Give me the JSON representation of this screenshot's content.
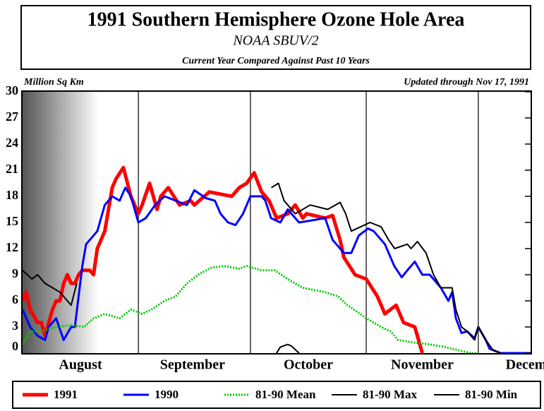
{
  "chart_data": {
    "type": "line",
    "title": "1991 Southern Hemisphere Ozone Hole Area",
    "subtitle": "NOAA SBUV/2",
    "caption": "Current Year Compared Against Past 10 Years",
    "ylabel": "Million Sq Km",
    "annotation": "Updated through Nov 17, 1991",
    "xlim": [
      0,
      136
    ],
    "xticks": [
      {
        "value": 15.5,
        "label": "August"
      },
      {
        "value": 45.5,
        "label": "September"
      },
      {
        "value": 76.5,
        "label": "October"
      },
      {
        "value": 107,
        "label": "November"
      },
      {
        "value": 137.5,
        "label": "December"
      }
    ],
    "xgrid": [
      31,
      61,
      92,
      122
    ],
    "ylim": [
      0,
      30
    ],
    "yticks": [
      0,
      3,
      6,
      9,
      12,
      15,
      18,
      21,
      24,
      27,
      30
    ],
    "series": [
      {
        "name": "1991",
        "color": "#ff0000",
        "style": "solid",
        "x": [
          0,
          1,
          2,
          4,
          5,
          6,
          8,
          9,
          10,
          11,
          12,
          13,
          14,
          15,
          16,
          18,
          19,
          20,
          22,
          24,
          25,
          27,
          29,
          31,
          32,
          34,
          36,
          37,
          39,
          42,
          45,
          46,
          50,
          56,
          58,
          60,
          62,
          64,
          66,
          68,
          71,
          73,
          75,
          76,
          81,
          83,
          85,
          86,
          89,
          92,
          95,
          97,
          100,
          102,
          105,
          107
        ],
        "values": [
          6,
          7,
          5,
          3.5,
          3.5,
          2,
          5,
          6,
          6,
          8,
          9,
          8,
          8,
          9,
          9.5,
          9.5,
          9,
          12,
          14,
          19,
          20,
          21.3,
          18,
          16,
          17,
          19.5,
          16.5,
          18,
          19,
          17,
          17.5,
          17,
          18.5,
          18,
          19,
          19.5,
          20.7,
          18.5,
          17.5,
          15.5,
          16,
          17,
          15.5,
          16,
          15.5,
          15.8,
          13,
          11,
          9,
          8.5,
          6.5,
          4.5,
          5.5,
          3.5,
          3,
          0
        ]
      },
      {
        "name": "1990",
        "color": "#0000ff",
        "style": "solid",
        "x": [
          0,
          2,
          4,
          6,
          7,
          9,
          11,
          13,
          14,
          16,
          17,
          18,
          20,
          22,
          24,
          26,
          27.5,
          29,
          31,
          33,
          35.5,
          38,
          44,
          46,
          49,
          51.5,
          53,
          55,
          57,
          59,
          61,
          64,
          65,
          66.5,
          69,
          71,
          74,
          77,
          81,
          83,
          86,
          88,
          90,
          92.5,
          94,
          97,
          99.5,
          101.5,
          103,
          105,
          107,
          109,
          112,
          114,
          115,
          116,
          117.5,
          119,
          121,
          122,
          124,
          125,
          128,
          136
        ],
        "values": [
          5,
          3,
          2,
          1.5,
          3,
          4,
          1.5,
          3,
          3,
          10,
          12.5,
          13,
          14,
          17,
          18,
          17.5,
          19,
          18,
          15,
          15.5,
          17,
          18,
          17,
          18.7,
          17.8,
          17.5,
          16,
          15,
          14.7,
          16,
          18,
          18,
          17.5,
          15.5,
          15,
          16.5,
          15,
          15.2,
          15.5,
          13,
          11.5,
          11.5,
          13.5,
          14.3,
          14,
          12.5,
          10,
          8.7,
          9.5,
          10.5,
          9,
          9,
          7.5,
          6,
          7,
          4,
          2.3,
          2.5,
          1.7,
          3,
          1.5,
          0.5,
          0,
          0
        ]
      },
      {
        "name": "81-90 Mean",
        "color": "#00cc00",
        "style": "dotted",
        "x": [
          0,
          2,
          5,
          9,
          13,
          16.5,
          19,
          22,
          26,
          29,
          32,
          34.5,
          38,
          41,
          44,
          47,
          50.5,
          54,
          58,
          60,
          64,
          67.5,
          71,
          75,
          81,
          84.5,
          87,
          92,
          96,
          98.5,
          100.5,
          105,
          109,
          113,
          117,
          120,
          122
        ],
        "values": [
          1,
          2.5,
          2.5,
          3,
          3.2,
          3,
          4,
          4.5,
          4,
          5,
          4.5,
          5,
          6,
          6.5,
          8,
          9,
          9.8,
          10,
          9.7,
          10,
          9.5,
          9.5,
          8.5,
          7.5,
          7,
          6.5,
          5.5,
          4,
          3,
          2.5,
          1.5,
          1.2,
          1,
          0.7,
          0.3,
          0,
          0
        ]
      },
      {
        "name": "81-90 Max",
        "color": "#000000",
        "style": "solid",
        "x": [
          0,
          2.5,
          4,
          6,
          8,
          10,
          12,
          13,
          14.5,
          15,
          66.6,
          68.5,
          70,
          73,
          77,
          81.7,
          85,
          86.5,
          88,
          93,
          96,
          98,
          99.6,
          103,
          104,
          105.7,
          108,
          110,
          112,
          115,
          116,
          117.5,
          119,
          121,
          122,
          124,
          126,
          128
        ],
        "values": [
          9.5,
          8.5,
          9,
          8,
          7.5,
          7,
          6,
          5.5,
          8,
          null,
          19,
          19.5,
          17.5,
          16,
          17,
          16.5,
          17.3,
          16,
          14,
          15,
          14.5,
          13,
          12,
          12.5,
          12,
          12.8,
          11.5,
          9,
          7.5,
          7.5,
          5,
          3,
          2.5,
          1.5,
          3,
          1.5,
          0.3,
          0
        ]
      },
      {
        "name": "81-90 Min",
        "color": "#000000",
        "style": "solid",
        "x": [
          68,
          69,
          71,
          72,
          74
        ],
        "values": [
          0,
          0.7,
          1,
          0.8,
          0
        ]
      }
    ]
  }
}
